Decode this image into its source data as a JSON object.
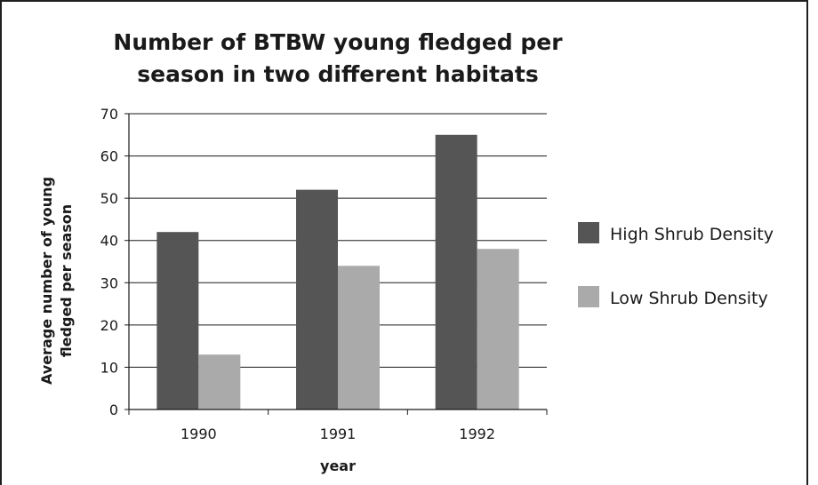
{
  "chart_data": {
    "type": "bar",
    "title_lines": [
      "Number of BTBW young fledged per",
      "season in two different habitats"
    ],
    "xlabel": "year",
    "ylabel_lines": [
      "Average number of young",
      "fledged per season"
    ],
    "categories": [
      "1990",
      "1991",
      "1992"
    ],
    "series": [
      {
        "name": "High Shrub Density",
        "values": [
          42,
          52,
          65
        ],
        "color": "#555555"
      },
      {
        "name": "Low Shrub Density",
        "values": [
          13,
          34,
          38
        ],
        "color": "#aaaaaa"
      }
    ],
    "ylim": [
      0,
      70
    ],
    "yticks": [
      "0",
      "10",
      "20",
      "30",
      "40",
      "50",
      "60",
      "70"
    ],
    "grid": true,
    "legend_position": "right"
  }
}
